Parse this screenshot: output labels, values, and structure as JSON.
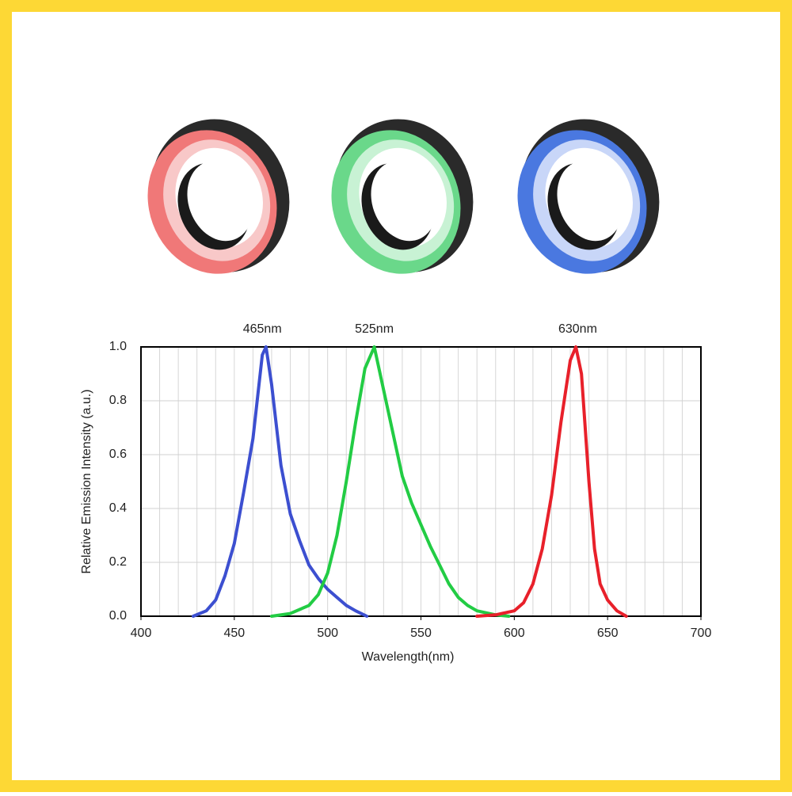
{
  "chart_data": {
    "type": "line",
    "xlabel": "Wavelength(nm)",
    "ylabel": "Relative Emission Intensity (a.u.)",
    "xlim": [
      400,
      700
    ],
    "xticks": [
      400,
      450,
      500,
      550,
      600,
      650,
      700
    ],
    "xgrid_step": 10,
    "ylim": [
      0,
      1
    ],
    "yticks": [
      {
        "value": 0,
        "label": "0.0"
      },
      0.2,
      0.4,
      0.6,
      0.8,
      {
        "value": 1,
        "label": "1.0"
      }
    ],
    "grid": true,
    "annotations": [
      {
        "text": "465nm",
        "x": 465
      },
      {
        "text": "525nm",
        "x": 525
      },
      {
        "text": "630nm",
        "x": 634
      }
    ],
    "series": [
      {
        "color": "#3c4fd0",
        "x": [
          428,
          435,
          440,
          445,
          450,
          455,
          460,
          465,
          467,
          470,
          475,
          480,
          485,
          490,
          495,
          500,
          505,
          510,
          515,
          521
        ],
        "values": [
          0,
          0.02,
          0.06,
          0.15,
          0.27,
          0.46,
          0.66,
          0.97,
          1.0,
          0.86,
          0.56,
          0.38,
          0.28,
          0.19,
          0.14,
          0.1,
          0.07,
          0.04,
          0.02,
          0
        ]
      },
      {
        "color": "#22cc44",
        "x": [
          470,
          480,
          490,
          495,
          500,
          505,
          510,
          515,
          520,
          525,
          530,
          535,
          540,
          545,
          550,
          555,
          560,
          565,
          570,
          575,
          580,
          590,
          597
        ],
        "values": [
          0,
          0.01,
          0.04,
          0.08,
          0.16,
          0.3,
          0.5,
          0.72,
          0.92,
          1.0,
          0.84,
          0.68,
          0.52,
          0.42,
          0.34,
          0.26,
          0.19,
          0.12,
          0.07,
          0.04,
          0.02,
          0.005,
          0
        ]
      },
      {
        "color": "#e8202a",
        "x": [
          580,
          590,
          600,
          605,
          610,
          615,
          620,
          625,
          630,
          633,
          636,
          640,
          643,
          646,
          650,
          655,
          660
        ],
        "values": [
          0,
          0.005,
          0.02,
          0.05,
          0.12,
          0.25,
          0.45,
          0.72,
          0.95,
          1.0,
          0.9,
          0.5,
          0.25,
          0.12,
          0.06,
          0.02,
          0
        ]
      }
    ]
  }
}
